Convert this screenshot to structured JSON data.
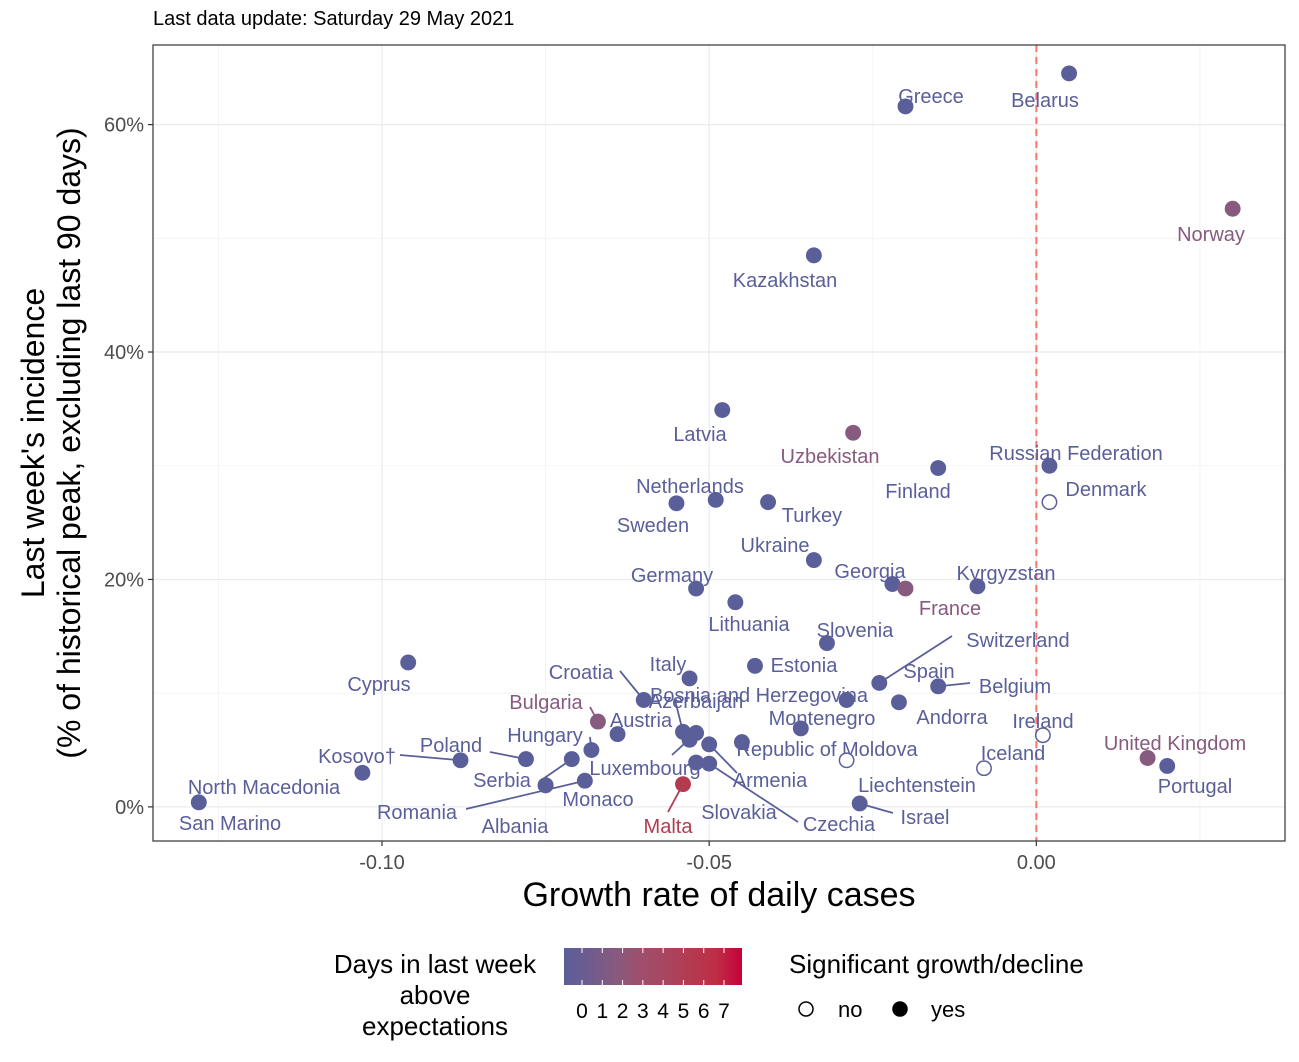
{
  "subtitle": "Last data update: Saturday 29 May 2021",
  "chart_data": {
    "type": "scatter",
    "xlabel": "Growth rate of daily cases",
    "ylabel_line1": "Last week's incidence",
    "ylabel_line2": "(% of historical peak, excluding last 90 days)",
    "xlim": [
      -0.135,
      0.038
    ],
    "ylim": [
      -3,
      67
    ],
    "x_ticks": [
      -0.1,
      -0.05,
      0.0
    ],
    "x_tick_labels": [
      "-0.10",
      "-0.05",
      "0.00"
    ],
    "y_ticks": [
      0,
      20,
      40,
      60
    ],
    "y_tick_labels": [
      "0%",
      "20%",
      "40%",
      "60%"
    ],
    "reference_line_x": 0,
    "reference_line_color": "#F8766D",
    "grid": true,
    "colors": {
      "0": "#5A5F9A",
      "1": "#6E5C8E",
      "2": "#875A7F",
      "3": "#9E4E6C",
      "4": "#A8465F",
      "5": "#B43A50",
      "6": "#BE2E45",
      "7": "#C5003A"
    },
    "points": [
      {
        "name": "Belarus",
        "x": 0.005,
        "y": 64.5,
        "days": 0,
        "sig": true
      },
      {
        "name": "Greece",
        "x": -0.02,
        "y": 61.6,
        "days": 0,
        "sig": true
      },
      {
        "name": "Norway",
        "x": 0.03,
        "y": 52.6,
        "days": 2,
        "sig": true
      },
      {
        "name": "Kazakhstan",
        "x": -0.034,
        "y": 48.5,
        "days": 0,
        "sig": true
      },
      {
        "name": "Latvia",
        "x": -0.048,
        "y": 34.9,
        "days": 0,
        "sig": true
      },
      {
        "name": "Uzbekistan",
        "x": -0.028,
        "y": 32.9,
        "days": 2,
        "sig": true
      },
      {
        "name": "Russian Federation",
        "x": 0.002,
        "y": 30.0,
        "days": 0,
        "sig": true
      },
      {
        "name": "Finland",
        "x": -0.015,
        "y": 29.8,
        "days": 0,
        "sig": true
      },
      {
        "name": "Netherlands",
        "x": -0.049,
        "y": 27.0,
        "days": 0,
        "sig": true
      },
      {
        "name": "Sweden",
        "x": -0.055,
        "y": 26.7,
        "days": 0,
        "sig": true
      },
      {
        "name": "Turkey",
        "x": -0.041,
        "y": 26.8,
        "days": 0,
        "sig": true
      },
      {
        "name": "Denmark",
        "x": 0.002,
        "y": 26.8,
        "days": 0,
        "sig": false
      },
      {
        "name": "Ukraine",
        "x": -0.034,
        "y": 21.7,
        "days": 0,
        "sig": true
      },
      {
        "name": "Georgia",
        "x": -0.022,
        "y": 19.6,
        "days": 0,
        "sig": true
      },
      {
        "name": "France",
        "x": -0.02,
        "y": 19.2,
        "days": 2,
        "sig": true
      },
      {
        "name": "Kyrgyzstan",
        "x": -0.009,
        "y": 19.4,
        "days": 0,
        "sig": true
      },
      {
        "name": "Germany",
        "x": -0.052,
        "y": 19.2,
        "days": 0,
        "sig": true
      },
      {
        "name": "Lithuania",
        "x": -0.046,
        "y": 18.0,
        "days": 0,
        "sig": true
      },
      {
        "name": "Slovenia",
        "x": -0.032,
        "y": 14.4,
        "days": 0,
        "sig": true
      },
      {
        "name": "Cyprus",
        "x": -0.096,
        "y": 12.7,
        "days": 0,
        "sig": true
      },
      {
        "name": "Estonia",
        "x": -0.043,
        "y": 12.4,
        "days": 0,
        "sig": true
      },
      {
        "name": "Italy",
        "x": -0.053,
        "y": 11.3,
        "days": 0,
        "sig": true
      },
      {
        "name": "Switzerland",
        "x": -0.024,
        "y": 10.9,
        "days": 0,
        "sig": true
      },
      {
        "name": "Belgium",
        "x": -0.015,
        "y": 10.6,
        "days": 0,
        "sig": true
      },
      {
        "name": "Croatia",
        "x": -0.06,
        "y": 9.4,
        "days": 0,
        "sig": true
      },
      {
        "name": "Spain",
        "x": -0.029,
        "y": 9.4,
        "days": 0,
        "sig": true
      },
      {
        "name": "Andorra",
        "x": -0.021,
        "y": 9.2,
        "days": 0,
        "sig": true
      },
      {
        "name": "Bulgaria",
        "x": -0.067,
        "y": 7.5,
        "days": 2,
        "sig": true
      },
      {
        "name": "Montenegro",
        "x": -0.036,
        "y": 6.9,
        "days": 0,
        "sig": true
      },
      {
        "name": "Austria",
        "x": -0.064,
        "y": 6.4,
        "days": 0,
        "sig": true
      },
      {
        "name": "Bosnia and Herzegovina",
        "x": -0.054,
        "y": 6.6,
        "days": 0,
        "sig": true
      },
      {
        "name": "Azerbaijan",
        "x": -0.052,
        "y": 6.5,
        "days": 0,
        "sig": true
      },
      {
        "name": "Ireland",
        "x": 0.001,
        "y": 6.3,
        "days": 0,
        "sig": false
      },
      {
        "name": "Republic of Moldova",
        "x": -0.045,
        "y": 5.7,
        "days": 0,
        "sig": true
      },
      {
        "name": "Luxembourg",
        "x": -0.053,
        "y": 5.9,
        "days": 0,
        "sig": true
      },
      {
        "name": "Armenia",
        "x": -0.05,
        "y": 5.5,
        "days": 0,
        "sig": true
      },
      {
        "name": "Hungary",
        "x": -0.068,
        "y": 5.0,
        "days": 0,
        "sig": true
      },
      {
        "name": "United Kingdom",
        "x": 0.017,
        "y": 4.3,
        "days": 2,
        "sig": true
      },
      {
        "name": "Poland",
        "x": -0.078,
        "y": 4.2,
        "days": 0,
        "sig": true
      },
      {
        "name": "Kosovo†",
        "x": -0.088,
        "y": 4.1,
        "days": 0,
        "sig": true
      },
      {
        "name": "Serbia",
        "x": -0.071,
        "y": 4.2,
        "days": 0,
        "sig": true
      },
      {
        "name": "Slovakia",
        "x": -0.052,
        "y": 3.9,
        "days": 0,
        "sig": true
      },
      {
        "name": "Czechia",
        "x": -0.05,
        "y": 3.8,
        "days": 0,
        "sig": true
      },
      {
        "name": "Liechtenstein",
        "x": -0.029,
        "y": 4.1,
        "days": 0,
        "sig": false
      },
      {
        "name": "Portugal",
        "x": 0.02,
        "y": 3.6,
        "days": 0,
        "sig": true
      },
      {
        "name": "Iceland",
        "x": -0.008,
        "y": 3.4,
        "days": 0,
        "sig": false
      },
      {
        "name": "North Macedonia",
        "x": -0.103,
        "y": 3.0,
        "days": 0,
        "sig": true
      },
      {
        "name": "Romania",
        "x": -0.069,
        "y": 2.3,
        "days": 0,
        "sig": true
      },
      {
        "name": "Malta",
        "x": -0.054,
        "y": 2.0,
        "days": 5,
        "sig": true
      },
      {
        "name": "Albania",
        "x": -0.075,
        "y": 1.9,
        "days": 0,
        "sig": true
      },
      {
        "name": "Monaco",
        "x": -0.075,
        "y": 1.9,
        "days": 0,
        "sig": true
      },
      {
        "name": "San Marino",
        "x": -0.128,
        "y": 0.4,
        "days": 0,
        "sig": true
      },
      {
        "name": "Israel",
        "x": -0.027,
        "y": 0.3,
        "days": 0,
        "sig": true
      }
    ],
    "legend": {
      "color_title_lines": [
        "Days in last week",
        "above",
        "expectations"
      ],
      "color_ticks": [
        "0",
        "1",
        "2",
        "3",
        "4",
        "5",
        "6",
        "7"
      ],
      "shape_title": "Significant growth/decline",
      "shape_items": [
        "no",
        "yes"
      ]
    }
  }
}
